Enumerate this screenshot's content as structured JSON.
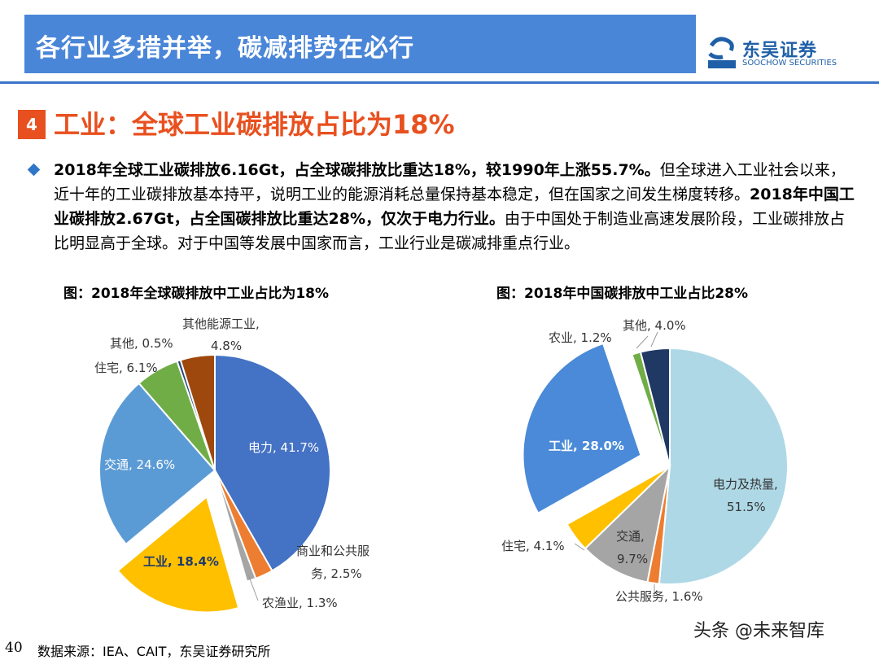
{
  "header": {
    "title": "各行业多措并举，碳减排势在必行",
    "logo_cn": "东吴证券",
    "logo_en": "SOOCHOW SECURITIES",
    "logo_mark": "SCS"
  },
  "section": {
    "number": "4",
    "title": "工业：全球工业碳排放占比为18%"
  },
  "paragraph": {
    "p1_bold": "2018年全球工业碳排放6.16Gt，占全球碳排放比重达18%，较1990年上涨55.7%。",
    "p1_normal": "但全球进入工业社会以来，近十年的工业碳排放基本持平，说明工业的能源消耗总量保持基本稳定，但在国家之间发生梯度转移。",
    "p2_bold": "2018年中国工业碳排放2.67Gt，占全国碳排放比重达28%，仅次于电力行业。",
    "p2_normal": "由于中国处于制造业高速发展阶段，工业碳排放占比明显高于全球。对于中国等发展中国家而言，工业行业是碳减排重点行业。"
  },
  "chart_data": [
    {
      "type": "pie",
      "title": "图：2018年全球碳排放中工业占比为18%",
      "slices": [
        {
          "name": "电力",
          "value": 41.7,
          "label": "电力, 41.7%",
          "color": "#4472c4"
        },
        {
          "name": "商业和公共服务",
          "value": 2.5,
          "label": "商业和公共服务, 2.5%",
          "color": "#ed7d31"
        },
        {
          "name": "农渔业",
          "value": 1.3,
          "label": "农渔业, 1.3%",
          "color": "#a5a5a5"
        },
        {
          "name": "工业",
          "value": 18.4,
          "label": "工业, 18.4%",
          "color": "#ffc000",
          "exploded": true
        },
        {
          "name": "交通",
          "value": 24.6,
          "label": "交通, 24.6%",
          "color": "#5b9bd5"
        },
        {
          "name": "住宅",
          "value": 6.1,
          "label": "住宅, 6.1%",
          "color": "#70ad47"
        },
        {
          "name": "其他",
          "value": 0.5,
          "label": "其他, 0.5%",
          "color": "#264478"
        },
        {
          "name": "其他能源工业",
          "value": 4.8,
          "label": "其他能源工业, 4.8%",
          "color": "#9e480e"
        }
      ]
    },
    {
      "type": "pie",
      "title": "图：2018年中国碳排放中工业占比28%",
      "slices": [
        {
          "name": "电力及热量",
          "value": 51.5,
          "label": "电力及热量, 51.5%",
          "color": "#aed8e6"
        },
        {
          "name": "公共服务",
          "value": 1.6,
          "label": "公共服务, 1.6%",
          "color": "#ed7d31"
        },
        {
          "name": "交通",
          "value": 9.7,
          "label": "交通, 9.7%",
          "color": "#a5a5a5"
        },
        {
          "name": "住宅",
          "value": 4.1,
          "label": "住宅, 4.1%",
          "color": "#ffc000"
        },
        {
          "name": "工业",
          "value": 28.0,
          "label": "工业, 28.0%",
          "color": "#4a8ad8",
          "exploded": true
        },
        {
          "name": "农业",
          "value": 1.2,
          "label": "农业, 1.2%",
          "color": "#70ad47"
        },
        {
          "name": "其他",
          "value": 4.0,
          "label": "其他, 4.0%",
          "color": "#203864"
        }
      ]
    }
  ],
  "footer": {
    "page": "40",
    "source": "数据来源：IEA、CAIT，东吴证券研究所",
    "watermark": "头条 @未来智库"
  }
}
